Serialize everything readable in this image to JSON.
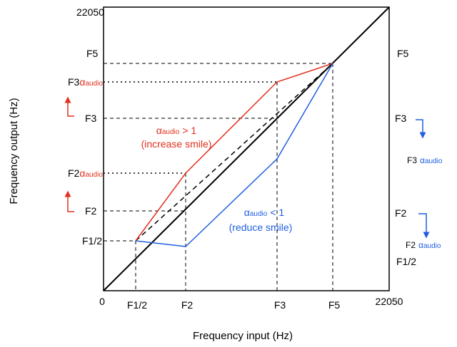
{
  "axes": {
    "x_title": "Frequency input (Hz)",
    "y_title": "Frequency output (Hz)"
  },
  "left_ticks": [
    "22050",
    "F5",
    "F3",
    "F2",
    "F1/2"
  ],
  "left_alpha_labels": [
    {
      "base": "F3",
      "sym": "α",
      "sub": "audio"
    },
    {
      "base": "F2",
      "sym": "α",
      "sub": "audio"
    }
  ],
  "bottom_ticks": [
    "0",
    "F1/2",
    "F2",
    "F3",
    "F5",
    "22050"
  ],
  "right_labels": [
    "F5",
    "F3",
    "F2",
    "F1/2"
  ],
  "right_alpha_labels": [
    {
      "base": "F3",
      "sym": "α",
      "sub": "audio"
    },
    {
      "base": "F2",
      "sym": "α",
      "sub": "audio"
    }
  ],
  "annotations": [
    {
      "sym": "α",
      "sub": "audio",
      "relation": "> 1",
      "note": "(increase smile)"
    },
    {
      "sym": "α",
      "sub": "audio",
      "relation": "< 1",
      "note": "(reduce smile)"
    }
  ]
}
